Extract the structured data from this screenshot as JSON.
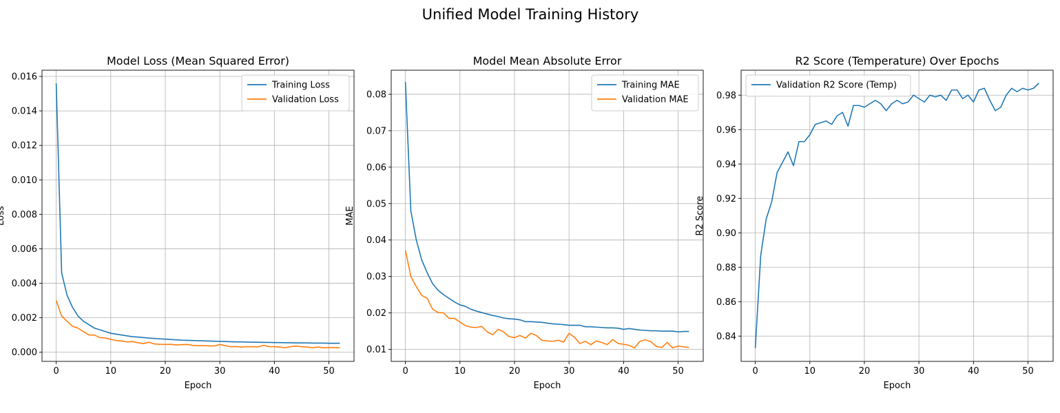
{
  "figure": {
    "title": "Unified Model Training History"
  },
  "colors": {
    "series1": "#1f77b4",
    "series2": "#ff7f0e",
    "grid": "#b0b0b0"
  },
  "chart_data": [
    {
      "type": "line",
      "title": "Model Loss (Mean Squared Error)",
      "xlabel": "Epoch",
      "ylabel": "Loss",
      "xlim": [
        -2.6,
        54.6
      ],
      "ylim": [
        -0.00053,
        0.01636
      ],
      "xticks": [
        0,
        10,
        20,
        30,
        40,
        50
      ],
      "yticks": [
        0.0,
        0.002,
        0.004,
        0.006,
        0.008,
        0.01,
        0.012,
        0.014,
        0.016
      ],
      "ytick_labels": [
        "0.000",
        "0.002",
        "0.004",
        "0.006",
        "0.008",
        "0.010",
        "0.012",
        "0.014",
        "0.016"
      ],
      "grid": true,
      "legend": "upper right",
      "series": [
        {
          "name": "Training Loss",
          "color": "#1f77b4",
          "values": [
            0.0156,
            0.0046,
            0.0033,
            0.0026,
            0.0021,
            0.0018,
            0.0016,
            0.0014,
            0.0013,
            0.0012,
            0.0011,
            0.00105,
            0.001,
            0.00095,
            0.0009,
            0.00088,
            0.00085,
            0.00082,
            0.0008,
            0.00078,
            0.00076,
            0.00074,
            0.00072,
            0.0007,
            0.00069,
            0.00068,
            0.00067,
            0.00066,
            0.00065,
            0.00064,
            0.00063,
            0.00062,
            0.00061,
            0.0006,
            0.0006,
            0.00059,
            0.00058,
            0.00058,
            0.00057,
            0.00057,
            0.00056,
            0.00056,
            0.00055,
            0.00055,
            0.00054,
            0.00054,
            0.00054,
            0.00053,
            0.00053,
            0.00053,
            0.00052,
            0.00052,
            0.00052
          ]
        },
        {
          "name": "Validation Loss",
          "color": "#ff7f0e",
          "values": [
            0.003,
            0.0021,
            0.0018,
            0.0015,
            0.0014,
            0.0012,
            0.001,
            0.001,
            0.00085,
            0.00083,
            0.00075,
            0.00068,
            0.00065,
            0.0006,
            0.00062,
            0.00055,
            0.0005,
            0.00058,
            0.00048,
            0.00046,
            0.00045,
            0.00046,
            0.00042,
            0.00044,
            0.00045,
            0.0004,
            0.00038,
            0.00038,
            0.00037,
            0.00036,
            0.00045,
            0.00038,
            0.00032,
            0.00033,
            0.0003,
            0.00032,
            0.00032,
            0.00031,
            0.0004,
            0.00033,
            0.00032,
            0.0003,
            0.00026,
            0.00033,
            0.00035,
            0.00032,
            0.0003,
            0.00026,
            0.0003,
            0.00026,
            0.00027,
            0.00027,
            0.00026
          ]
        }
      ]
    },
    {
      "type": "line",
      "title": "Model Mean Absolute Error",
      "xlabel": "Epoch",
      "ylabel": "MAE",
      "xlim": [
        -2.6,
        54.6
      ],
      "ylim": [
        0.0067,
        0.0866
      ],
      "xticks": [
        0,
        10,
        20,
        30,
        40,
        50
      ],
      "yticks": [
        0.01,
        0.02,
        0.03,
        0.04,
        0.05,
        0.06,
        0.07,
        0.08
      ],
      "ytick_labels": [
        "0.01",
        "0.02",
        "0.03",
        "0.04",
        "0.05",
        "0.06",
        "0.07",
        "0.08"
      ],
      "grid": true,
      "legend": "upper right",
      "series": [
        {
          "name": "Training MAE",
          "color": "#1f77b4",
          "values": [
            0.0834,
            0.048,
            0.04,
            0.0345,
            0.031,
            0.028,
            0.0262,
            0.025,
            0.024,
            0.023,
            0.0222,
            0.0218,
            0.021,
            0.0205,
            0.0201,
            0.0197,
            0.0193,
            0.019,
            0.0186,
            0.0184,
            0.0183,
            0.0181,
            0.0176,
            0.0176,
            0.0175,
            0.0174,
            0.0172,
            0.017,
            0.0169,
            0.0168,
            0.0166,
            0.0166,
            0.0166,
            0.0162,
            0.0162,
            0.0161,
            0.016,
            0.0159,
            0.0159,
            0.0158,
            0.0155,
            0.0157,
            0.0155,
            0.0153,
            0.0152,
            0.0151,
            0.0151,
            0.015,
            0.015,
            0.015,
            0.0148,
            0.0149,
            0.0149
          ]
        },
        {
          "name": "Validation MAE",
          "color": "#ff7f0e",
          "values": [
            0.0372,
            0.03,
            0.0272,
            0.0248,
            0.024,
            0.021,
            0.0201,
            0.02,
            0.0185,
            0.0185,
            0.0175,
            0.0165,
            0.0161,
            0.016,
            0.0163,
            0.0148,
            0.014,
            0.0155,
            0.0148,
            0.0135,
            0.0132,
            0.0138,
            0.0131,
            0.0144,
            0.0138,
            0.0125,
            0.0123,
            0.0122,
            0.0125,
            0.012,
            0.0144,
            0.0133,
            0.0116,
            0.0122,
            0.0113,
            0.0123,
            0.0119,
            0.0113,
            0.0127,
            0.0116,
            0.0114,
            0.0111,
            0.0104,
            0.0122,
            0.0126,
            0.0121,
            0.0108,
            0.0105,
            0.0119,
            0.0104,
            0.0109,
            0.0107,
            0.0105
          ]
        }
      ]
    },
    {
      "type": "line",
      "title": "R2 Score (Temperature) Over Epochs",
      "xlabel": "Epoch",
      "ylabel": "R2 Score",
      "xlim": [
        -2.6,
        54.6
      ],
      "ylim": [
        0.8253,
        0.9945
      ],
      "xticks": [
        0,
        10,
        20,
        30,
        40,
        50
      ],
      "yticks": [
        0.84,
        0.86,
        0.88,
        0.9,
        0.92,
        0.94,
        0.96,
        0.98
      ],
      "ytick_labels": [
        "0.84",
        "0.86",
        "0.88",
        "0.90",
        "0.92",
        "0.94",
        "0.96",
        "0.98"
      ],
      "grid": true,
      "legend": "upper left",
      "series": [
        {
          "name": "Validation R2 Score (Temp)",
          "color": "#1f77b4",
          "values": [
            0.833,
            0.887,
            0.908,
            0.918,
            0.935,
            0.941,
            0.947,
            0.939,
            0.953,
            0.953,
            0.957,
            0.963,
            0.964,
            0.965,
            0.963,
            0.968,
            0.97,
            0.962,
            0.974,
            0.974,
            0.973,
            0.975,
            0.977,
            0.975,
            0.971,
            0.975,
            0.977,
            0.975,
            0.976,
            0.98,
            0.978,
            0.976,
            0.98,
            0.979,
            0.98,
            0.977,
            0.983,
            0.983,
            0.978,
            0.98,
            0.976,
            0.983,
            0.984,
            0.977,
            0.971,
            0.973,
            0.98,
            0.984,
            0.982,
            0.984,
            0.983,
            0.984,
            0.987
          ]
        }
      ]
    }
  ]
}
